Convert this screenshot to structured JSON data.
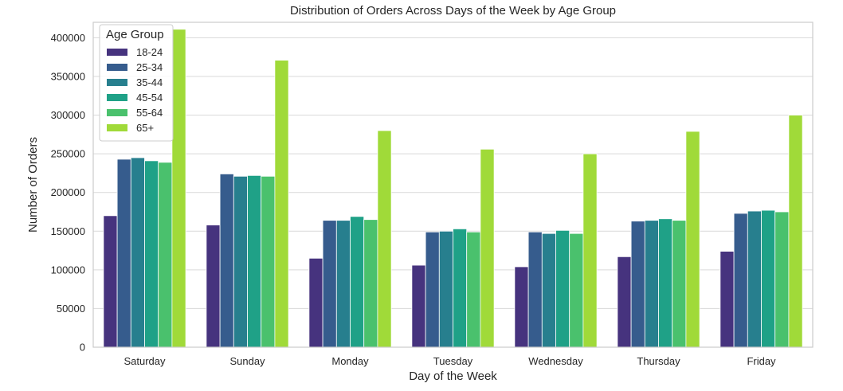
{
  "chart_data": {
    "type": "bar",
    "title": "Distribution of Orders Across Days of the Week by Age Group",
    "xlabel": "Day of the Week",
    "ylabel": "Number of Orders",
    "ylim": [
      0,
      420000
    ],
    "yticks": [
      0,
      50000,
      100000,
      150000,
      200000,
      250000,
      300000,
      350000,
      400000
    ],
    "grid": true,
    "legend": {
      "title": "Age Group",
      "placement": "top-left"
    },
    "categories": [
      "Saturday",
      "Sunday",
      "Monday",
      "Tuesday",
      "Wednesday",
      "Thursday",
      "Friday"
    ],
    "series": [
      {
        "name": "18-24",
        "color": "#46337e",
        "values": [
          170000,
          158000,
          115000,
          106000,
          104000,
          117000,
          124000
        ]
      },
      {
        "name": "25-34",
        "color": "#365c8d",
        "values": [
          243000,
          224000,
          164000,
          149000,
          149000,
          163000,
          173000
        ]
      },
      {
        "name": "35-44",
        "color": "#277f8e",
        "values": [
          245000,
          221000,
          164000,
          150000,
          147000,
          164000,
          176000
        ]
      },
      {
        "name": "45-54",
        "color": "#1fa187",
        "values": [
          241000,
          222000,
          169000,
          153000,
          151000,
          166000,
          177000
        ]
      },
      {
        "name": "55-64",
        "color": "#4ac16d",
        "values": [
          239000,
          221000,
          165000,
          149000,
          147000,
          164000,
          175000
        ]
      },
      {
        "name": "65+",
        "color": "#a0da39",
        "values": [
          411000,
          371000,
          280000,
          256000,
          250000,
          279000,
          300000
        ]
      }
    ]
  }
}
